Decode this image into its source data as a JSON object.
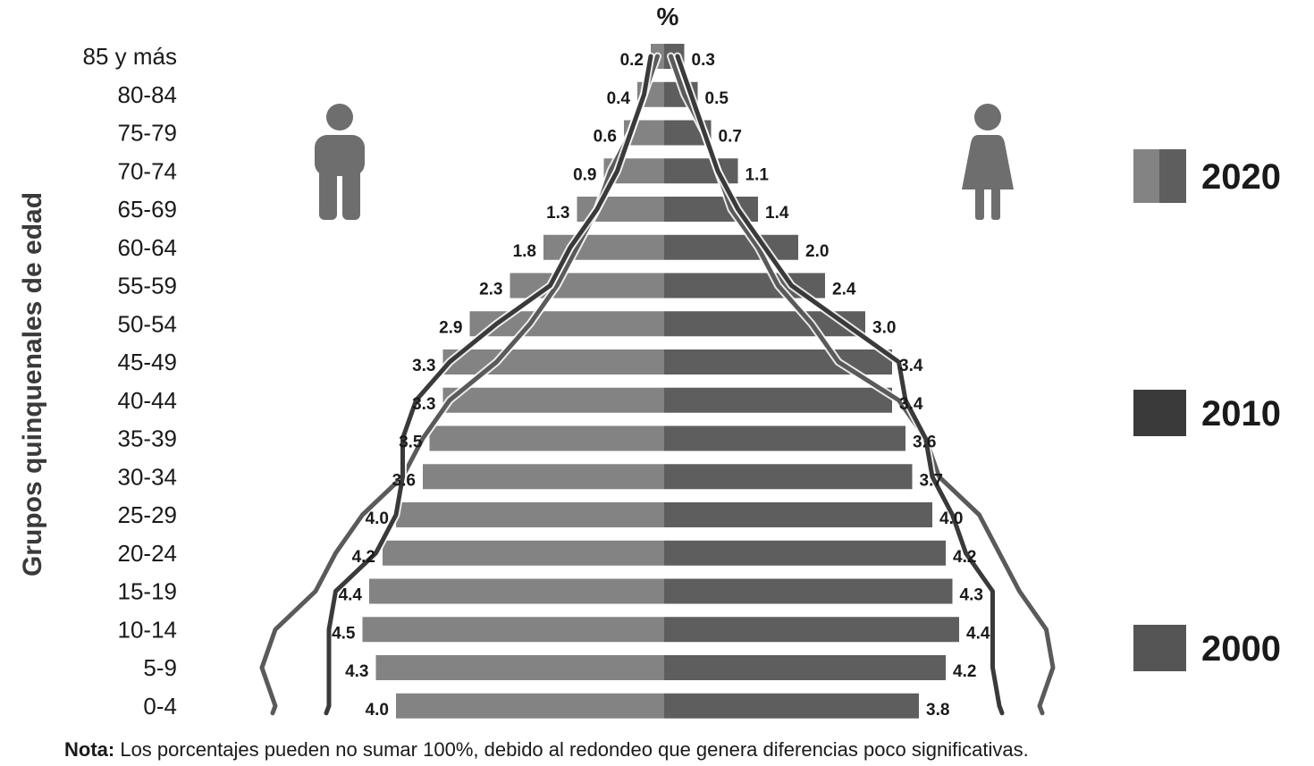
{
  "chart_data": {
    "type": "bar",
    "subtype": "population-pyramid",
    "unit_label": "%",
    "ylabel": "Grupos quinquenales de edad",
    "categories": [
      "85 y más",
      "80-84",
      "75-79",
      "70-74",
      "65-69",
      "60-64",
      "55-59",
      "50-54",
      "45-49",
      "40-44",
      "35-39",
      "30-34",
      "25-29",
      "20-24",
      "15-19",
      "10-14",
      "5-9",
      "0-4"
    ],
    "series": [
      {
        "name": "2020",
        "side": "men",
        "values": [
          0.2,
          0.4,
          0.6,
          0.9,
          1.3,
          1.8,
          2.3,
          2.9,
          3.3,
          3.3,
          3.5,
          3.6,
          4.0,
          4.2,
          4.4,
          4.5,
          4.3,
          4.0
        ],
        "labels": [
          "0.2",
          "0.4",
          "0.6",
          "0.9",
          "1.3",
          "1.8",
          "2.3",
          "2.9",
          "3.3",
          "3.3",
          "3.5",
          "3.6",
          "4.0",
          "4.2",
          "4.4",
          "4.5",
          "4.3",
          "4.0"
        ]
      },
      {
        "name": "2020",
        "side": "women",
        "values": [
          0.3,
          0.5,
          0.7,
          1.1,
          1.4,
          2.0,
          2.4,
          3.0,
          3.4,
          3.4,
          3.6,
          3.7,
          4.0,
          4.2,
          4.3,
          4.4,
          4.2,
          3.8
        ],
        "labels": [
          "0.3",
          "0.5",
          "0.7",
          "1.1",
          "1.4",
          "2.0",
          "2.4",
          "3.0",
          "3.4",
          "3.4",
          "3.6",
          "3.7",
          "4.0",
          "4.2",
          "4.3",
          "4.4",
          "4.2",
          "3.8"
        ]
      },
      {
        "name": "2010",
        "side": "men",
        "values": [
          0.2,
          0.3,
          0.5,
          0.7,
          1.0,
          1.4,
          1.7,
          2.5,
          3.2,
          3.7,
          3.9,
          3.9,
          4.0,
          4.3,
          4.9,
          5.0,
          5.0,
          5.0
        ]
      },
      {
        "name": "2010",
        "side": "women",
        "values": [
          0.2,
          0.4,
          0.6,
          0.8,
          1.1,
          1.5,
          1.9,
          2.7,
          3.5,
          3.6,
          3.9,
          4.0,
          4.3,
          4.5,
          4.9,
          4.9,
          4.9,
          5.0
        ]
      },
      {
        "name": "2000",
        "side": "men",
        "values": [
          0.1,
          0.3,
          0.5,
          0.8,
          1.0,
          1.3,
          1.6,
          2.0,
          2.5,
          3.2,
          3.6,
          3.9,
          4.5,
          4.9,
          5.2,
          5.8,
          6.0,
          5.8
        ]
      },
      {
        "name": "2000",
        "side": "women",
        "values": [
          0.1,
          0.3,
          0.6,
          0.8,
          1.0,
          1.4,
          1.7,
          2.2,
          2.6,
          3.5,
          3.9,
          4.1,
          4.7,
          5.0,
          5.3,
          5.7,
          5.8,
          5.6
        ]
      }
    ],
    "legend": [
      {
        "label": "2020",
        "colors": [
          "#838383",
          "#5e5e5e"
        ]
      },
      {
        "label": "2010",
        "colors": [
          "#3a3a3a"
        ]
      },
      {
        "label": "2000",
        "colors": [
          "#555555"
        ]
      }
    ],
    "legend_position": "right",
    "colors": {
      "men_bar": "#838383",
      "women_bar": "#5e5e5e",
      "line_2010": "#3a3a3a",
      "line_2000": "#5a5a5a",
      "icon": "#6e6e6e"
    },
    "grid": false
  },
  "icons": {
    "men": "man-icon",
    "women": "woman-icon"
  },
  "note": {
    "prefix": "Nota:",
    "text": " Los porcentajes pueden no sumar 100%, debido al redondeo que genera diferencias poco significativas."
  }
}
